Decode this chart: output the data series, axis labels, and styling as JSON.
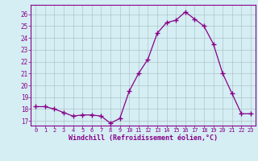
{
  "x": [
    0,
    1,
    2,
    3,
    4,
    5,
    6,
    7,
    8,
    9,
    10,
    11,
    12,
    13,
    14,
    15,
    16,
    17,
    18,
    19,
    20,
    21,
    22,
    23
  ],
  "y": [
    18.2,
    18.2,
    18.0,
    17.7,
    17.4,
    17.5,
    17.5,
    17.4,
    16.8,
    17.2,
    19.5,
    21.0,
    22.2,
    24.4,
    25.3,
    25.5,
    26.2,
    25.6,
    25.0,
    23.5,
    21.0,
    19.3,
    17.6,
    17.6
  ],
  "line_color": "#880088",
  "marker": "+",
  "marker_color": "#880088",
  "xlabel": "Windchill (Refroidissement éolien,°C)",
  "ylim": [
    16.6,
    26.8
  ],
  "xlim": [
    -0.5,
    23.5
  ],
  "yticks": [
    17,
    18,
    19,
    20,
    21,
    22,
    23,
    24,
    25,
    26
  ],
  "xticks": [
    0,
    1,
    2,
    3,
    4,
    5,
    6,
    7,
    8,
    9,
    10,
    11,
    12,
    13,
    14,
    15,
    16,
    17,
    18,
    19,
    20,
    21,
    22,
    23
  ],
  "bg_color": "#d4eef4",
  "grid_color": "#aabbbb",
  "axis_color": "#880088",
  "tick_color": "#880088",
  "xlabel_color": "#880088"
}
